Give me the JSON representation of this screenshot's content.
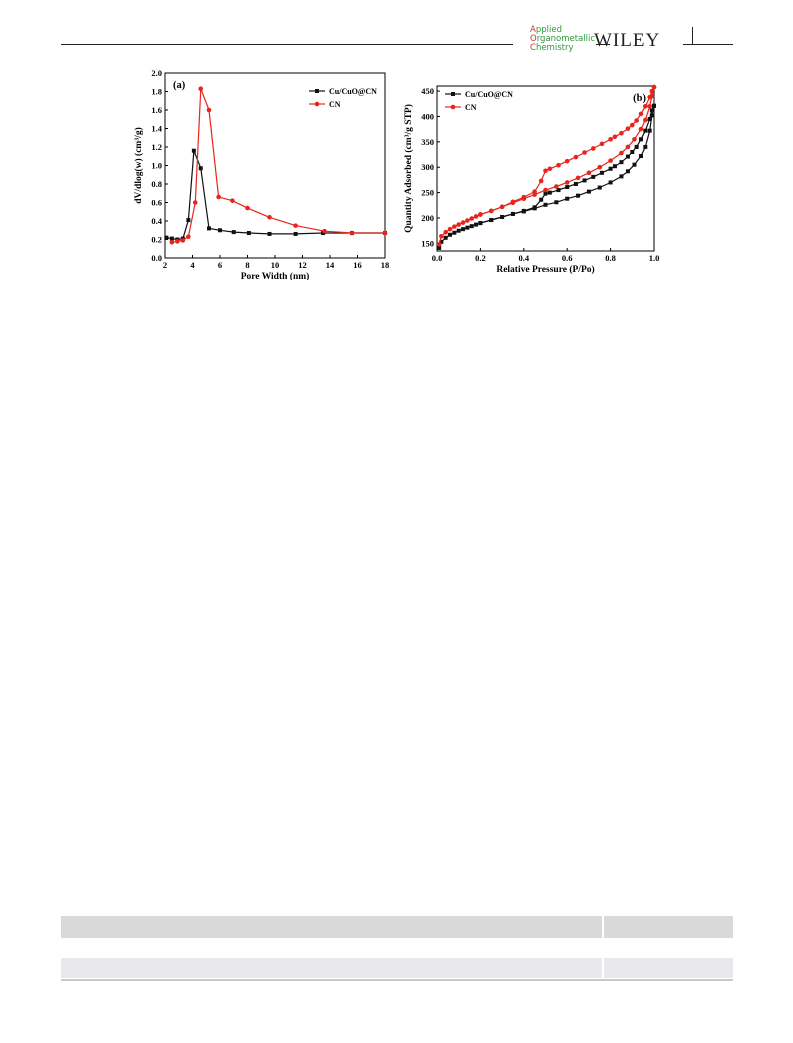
{
  "header": {
    "journal_line1": "Applied",
    "journal_line2": "Organometallic",
    "journal_line3": "Chemistry",
    "publisher": "WILEY"
  },
  "colors": {
    "series_1": "#111111",
    "series_2": "#e8241c"
  },
  "chart_data": [
    {
      "type": "line",
      "panel_label": "(a)",
      "xlabel": "Pore Width (nm)",
      "ylabel": "dV/dlog(w) (cm³/g)",
      "xlim": [
        2,
        18
      ],
      "ylim": [
        0.0,
        2.0
      ],
      "xticks": [
        2,
        4,
        6,
        8,
        10,
        12,
        14,
        16,
        18
      ],
      "yticks": [
        0.0,
        0.2,
        0.4,
        0.6,
        0.8,
        1.0,
        1.2,
        1.4,
        1.6,
        1.8,
        2.0
      ],
      "legend_position": "top-right",
      "series": [
        {
          "name": "Cu/CuO@CN",
          "marker": "square",
          "color": "#111111",
          "x": [
            2.1,
            2.5,
            2.9,
            3.3,
            3.7,
            4.1,
            4.6,
            5.2,
            6.0,
            7.0,
            8.1,
            9.6,
            11.5,
            13.5,
            15.6,
            18.0
          ],
          "y": [
            0.22,
            0.21,
            0.2,
            0.21,
            0.41,
            1.16,
            0.97,
            0.32,
            0.3,
            0.28,
            0.27,
            0.26,
            0.26,
            0.27,
            0.27,
            0.27
          ]
        },
        {
          "name": "CN",
          "marker": "circle",
          "color": "#e8241c",
          "x": [
            2.5,
            2.9,
            3.3,
            3.7,
            4.2,
            4.6,
            5.2,
            5.9,
            6.9,
            8.0,
            9.6,
            11.5,
            13.6,
            15.6,
            18.0
          ],
          "y": [
            0.17,
            0.18,
            0.19,
            0.23,
            0.6,
            1.83,
            1.6,
            0.66,
            0.62,
            0.54,
            0.44,
            0.35,
            0.29,
            0.27,
            0.27
          ]
        }
      ]
    },
    {
      "type": "line",
      "panel_label": "(b)",
      "xlabel": "Relative Pressure (P/Po)",
      "ylabel": "Quantity Adsorbed (cm³/g STP)",
      "xlim": [
        0.0,
        1.0
      ],
      "ylim": [
        135,
        460
      ],
      "xticks": [
        0.0,
        0.2,
        0.4,
        0.6,
        0.8,
        1.0
      ],
      "yticks": [
        150,
        200,
        250,
        300,
        350,
        400,
        450
      ],
      "legend_position": "top-left",
      "series": [
        {
          "name": "Cu/CuO@CN",
          "marker": "square",
          "color": "#111111",
          "adsorption": {
            "x": [
              0.01,
              0.02,
              0.04,
              0.06,
              0.08,
              0.1,
              0.12,
              0.14,
              0.16,
              0.18,
              0.2,
              0.25,
              0.3,
              0.35,
              0.4,
              0.45,
              0.5,
              0.55,
              0.6,
              0.65,
              0.7,
              0.75,
              0.8,
              0.85,
              0.88,
              0.91,
              0.94,
              0.96,
              0.98,
              0.99,
              1.0
            ],
            "y": [
              141,
              153,
              161,
              167,
              171,
              175,
              178,
              181,
              184,
              187,
              190,
              196,
              202,
              208,
              213,
              219,
              226,
              231,
              238,
              244,
              252,
              260,
              270,
              282,
              292,
              305,
              322,
              340,
              372,
              402,
              421
            ]
          },
          "desorption": {
            "x": [
              1.0,
              0.99,
              0.98,
              0.96,
              0.94,
              0.92,
              0.9,
              0.88,
              0.85,
              0.82,
              0.8,
              0.76,
              0.72,
              0.68,
              0.64,
              0.6,
              0.56,
              0.52,
              0.5,
              0.48,
              0.45,
              0.4,
              0.35,
              0.3,
              0.25,
              0.2
            ],
            "y": [
              421,
              412,
              395,
              372,
              355,
              340,
              330,
              321,
              310,
              302,
              297,
              289,
              281,
              274,
              267,
              261,
              255,
              250,
              248,
              236,
              221,
              214,
              208,
              202,
              196,
              190
            ]
          }
        },
        {
          "name": "CN",
          "marker": "circle",
          "color": "#e8241c",
          "adsorption": {
            "x": [
              0.01,
              0.02,
              0.04,
              0.06,
              0.08,
              0.1,
              0.12,
              0.14,
              0.16,
              0.18,
              0.2,
              0.25,
              0.3,
              0.35,
              0.4,
              0.45,
              0.5,
              0.55,
              0.6,
              0.65,
              0.7,
              0.75,
              0.8,
              0.85,
              0.88,
              0.91,
              0.94,
              0.96,
              0.98,
              0.99,
              1.0
            ],
            "y": [
              148,
              164,
              172,
              178,
              183,
              187,
              191,
              195,
              199,
              203,
              207,
              214,
              222,
              230,
              238,
              246,
              255,
              262,
              270,
              279,
              289,
              300,
              313,
              328,
              340,
              355,
              375,
              393,
              420,
              440,
              458
            ]
          },
          "desorption": {
            "x": [
              1.0,
              0.99,
              0.98,
              0.96,
              0.94,
              0.92,
              0.9,
              0.88,
              0.85,
              0.82,
              0.8,
              0.76,
              0.72,
              0.68,
              0.64,
              0.6,
              0.56,
              0.52,
              0.5,
              0.48,
              0.45,
              0.4,
              0.35,
              0.3,
              0.25,
              0.2
            ],
            "y": [
              458,
              450,
              438,
              420,
              405,
              392,
              383,
              376,
              367,
              360,
              355,
              346,
              337,
              329,
              320,
              312,
              304,
              297,
              293,
              273,
              252,
              241,
              232,
              222,
              214,
              207
            ]
          }
        }
      ]
    }
  ]
}
